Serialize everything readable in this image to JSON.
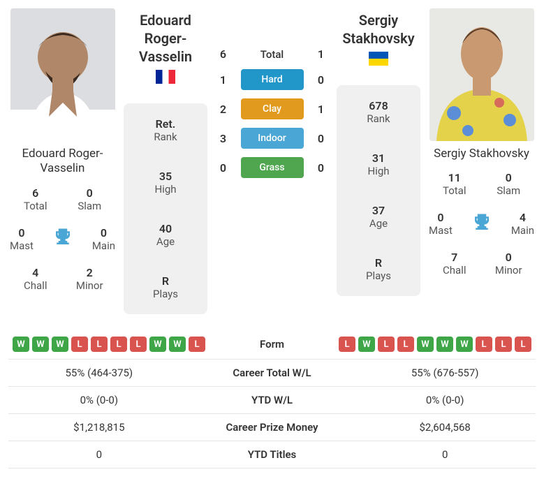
{
  "p1": {
    "name": "Edouard Roger-Vasselin",
    "flag": "fr",
    "photo_bg": "#d8d8d8",
    "titles": {
      "total": {
        "v": "6",
        "l": "Total"
      },
      "slam": {
        "v": "0",
        "l": "Slam"
      },
      "mast": {
        "v": "0",
        "l": "Mast"
      },
      "main": {
        "v": "0",
        "l": "Main"
      },
      "chall": {
        "v": "4",
        "l": "Chall"
      },
      "minor": {
        "v": "2",
        "l": "Minor"
      }
    },
    "meta": {
      "rank": {
        "v": "Ret.",
        "l": "Rank"
      },
      "high": {
        "v": "35",
        "l": "High"
      },
      "age": {
        "v": "40",
        "l": "Age"
      },
      "plays": {
        "v": "R",
        "l": "Plays"
      }
    },
    "form": [
      "W",
      "W",
      "W",
      "L",
      "L",
      "L",
      "L",
      "W",
      "W",
      "L"
    ],
    "career_wl": "55% (464-375)",
    "ytd_wl": "0% (0-0)",
    "prize": "$1,218,815",
    "ytd_titles": "0"
  },
  "p2": {
    "name": "Sergiy Stakhovsky",
    "flag": "ua",
    "photo_bg": "#d8d8d8",
    "titles": {
      "total": {
        "v": "11",
        "l": "Total"
      },
      "slam": {
        "v": "0",
        "l": "Slam"
      },
      "mast": {
        "v": "0",
        "l": "Mast"
      },
      "main": {
        "v": "4",
        "l": "Main"
      },
      "chall": {
        "v": "7",
        "l": "Chall"
      },
      "minor": {
        "v": "0",
        "l": "Minor"
      }
    },
    "meta": {
      "rank": {
        "v": "678",
        "l": "Rank"
      },
      "high": {
        "v": "31",
        "l": "High"
      },
      "age": {
        "v": "37",
        "l": "Age"
      },
      "plays": {
        "v": "R",
        "l": "Plays"
      }
    },
    "form": [
      "L",
      "W",
      "L",
      "L",
      "W",
      "W",
      "W",
      "L",
      "L",
      "L"
    ],
    "career_wl": "55% (676-557)",
    "ytd_wl": "0% (0-0)",
    "prize": "$2,604,568",
    "ytd_titles": "0"
  },
  "h2h": {
    "total": {
      "label": "Total",
      "p1": "6",
      "p2": "1"
    },
    "hard": {
      "label": "Hard",
      "p1": "1",
      "p2": "0"
    },
    "clay": {
      "label": "Clay",
      "p1": "2",
      "p2": "1"
    },
    "indoor": {
      "label": "Indoor",
      "p1": "3",
      "p2": "0"
    },
    "grass": {
      "label": "Grass",
      "p1": "0",
      "p2": "0"
    }
  },
  "labels": {
    "form": "Form",
    "career_wl": "Career Total W/L",
    "ytd_wl": "YTD W/L",
    "prize": "Career Prize Money",
    "ytd_titles": "YTD Titles"
  },
  "colors": {
    "win": "#3fa648",
    "loss": "#d9534f",
    "trophy": "#4aa6d5"
  }
}
